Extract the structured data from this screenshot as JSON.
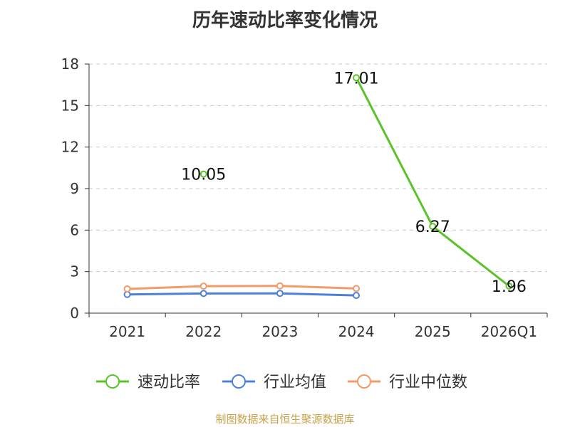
{
  "chart_data": {
    "type": "line",
    "title": "历年速动比率变化情况",
    "categories": [
      "2021",
      "2022",
      "2023",
      "2024",
      "2025",
      "2026Q1"
    ],
    "ylim": [
      0,
      18
    ],
    "yticks": [
      0,
      3,
      6,
      9,
      12,
      15,
      18
    ],
    "grid": true,
    "legend_position": "bottom",
    "series": [
      {
        "name": "速动比率",
        "color": "#5cc22a",
        "values": [
          null,
          10.05,
          null,
          17.01,
          6.27,
          1.96
        ],
        "labels": [
          "",
          "10.05",
          "",
          "17.01",
          "6.27",
          "1.96"
        ]
      },
      {
        "name": "行业均值",
        "color": "#4f7fd8",
        "values": [
          1.35,
          1.42,
          1.43,
          1.28,
          null,
          null
        ]
      },
      {
        "name": "行业中位数",
        "color": "#f39a68",
        "values": [
          1.75,
          1.95,
          1.97,
          1.78,
          null,
          null
        ]
      }
    ]
  },
  "source_note": "制图数据来自恒生聚源数据库"
}
